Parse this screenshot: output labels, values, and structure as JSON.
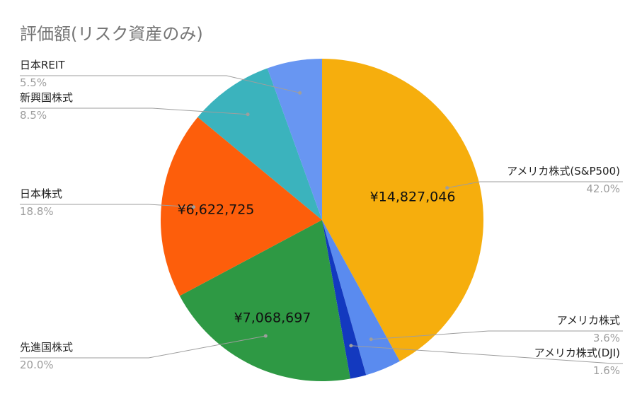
{
  "chart_data": {
    "type": "pie",
    "title": "評価額(リスク資産のみ)",
    "slices": [
      {
        "name": "アメリカ株式(S&P500)",
        "percent": "42.0%",
        "share": 0.42,
        "value_label": "¥14,827,046",
        "color": "#f6ae0d"
      },
      {
        "name": "アメリカ株式",
        "percent": "3.6%",
        "share": 0.036,
        "value_label": "",
        "color": "#5a8bef"
      },
      {
        "name": "アメリカ株式(DJI)",
        "percent": "1.6%",
        "share": 0.016,
        "value_label": "",
        "color": "#1339bf"
      },
      {
        "name": "先進国株式",
        "percent": "20.0%",
        "share": 0.2,
        "value_label": "¥7,068,697",
        "color": "#2e9944"
      },
      {
        "name": "日本株式",
        "percent": "18.8%",
        "share": 0.188,
        "value_label": "¥6,622,725",
        "color": "#fd5e0b"
      },
      {
        "name": "新興国株式",
        "percent": "8.5%",
        "share": 0.085,
        "value_label": "",
        "color": "#3bb3bd"
      },
      {
        "name": "日本REIT",
        "percent": "5.5%",
        "share": 0.055,
        "value_label": "",
        "color": "#6896f2"
      }
    ]
  }
}
